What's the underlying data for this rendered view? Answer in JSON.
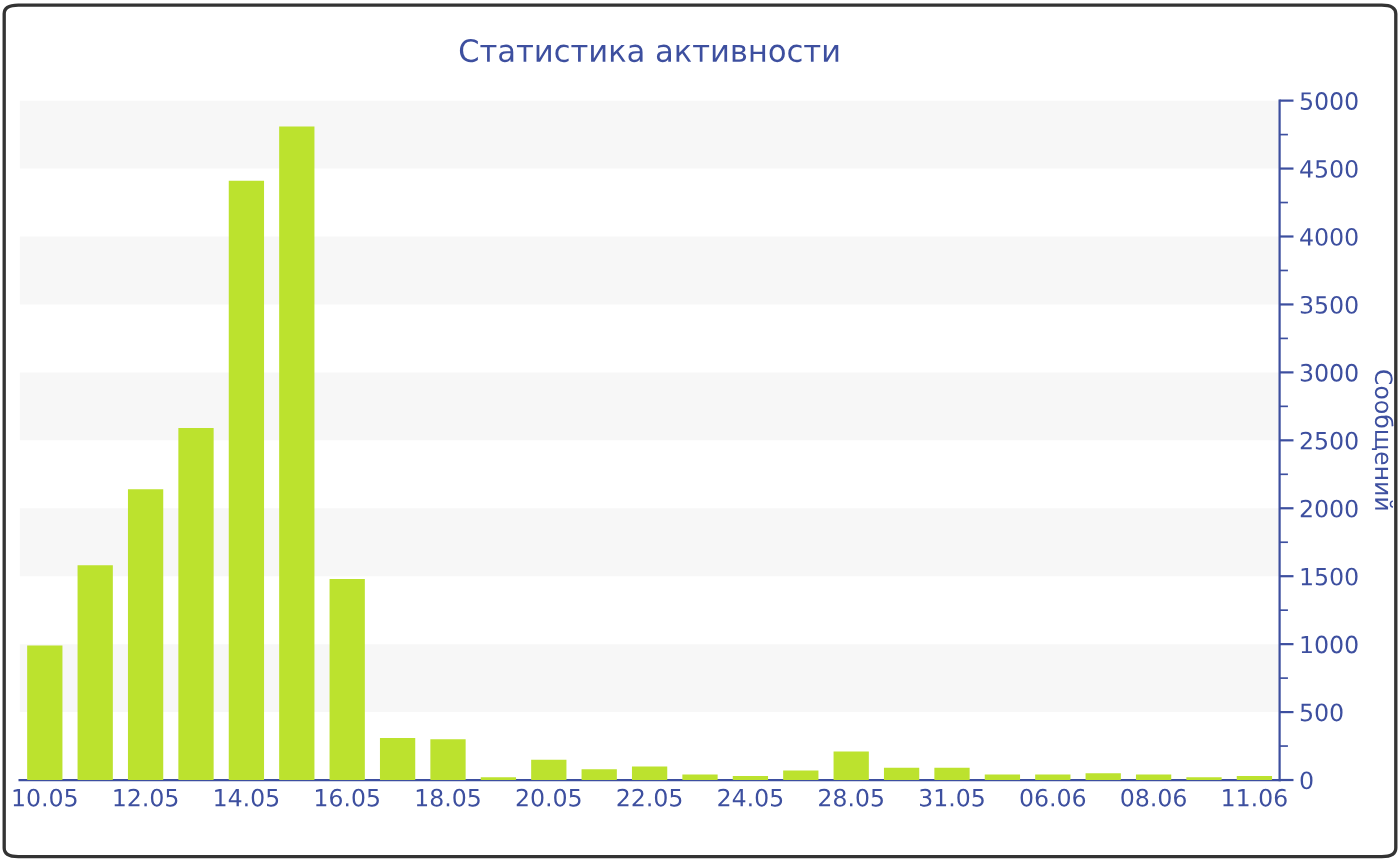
{
  "chart_data": {
    "type": "bar",
    "title": "Статистика активности",
    "ylabel": "Сообщений",
    "categories": [
      "10.05",
      null,
      "12.05",
      null,
      "14.05",
      null,
      "16.05",
      null,
      "18.05",
      null,
      "20.05",
      null,
      "22.05",
      null,
      "24.05",
      null,
      "28.05",
      null,
      "31.05",
      null,
      "06.06",
      null,
      "08.06",
      null,
      "11.06"
    ],
    "values": [
      990,
      1580,
      2140,
      2590,
      4410,
      4810,
      1480,
      310,
      300,
      20,
      150,
      80,
      100,
      40,
      30,
      70,
      210,
      90,
      90,
      40,
      40,
      50,
      40,
      20,
      30
    ],
    "color": "#bce22e",
    "ylim": [
      0,
      5000
    ],
    "yticks": [
      0,
      500,
      1000,
      1500,
      2000,
      2500,
      3000,
      3500,
      4000,
      4500,
      5000
    ],
    "bands": [
      {
        "axis": "y",
        "from": 500,
        "to": 1000,
        "color": "#f7f7f7"
      },
      {
        "axis": "y",
        "from": 1500,
        "to": 2000,
        "color": "#f7f7f7"
      },
      {
        "axis": "y",
        "from": 2500,
        "to": 3000,
        "color": "#f7f7f7"
      },
      {
        "axis": "y",
        "from": 3500,
        "to": 4000,
        "color": "#f7f7f7"
      },
      {
        "axis": "y",
        "from": 4500,
        "to": 5000,
        "color": "#f7f7f7"
      }
    ],
    "legend": false
  }
}
